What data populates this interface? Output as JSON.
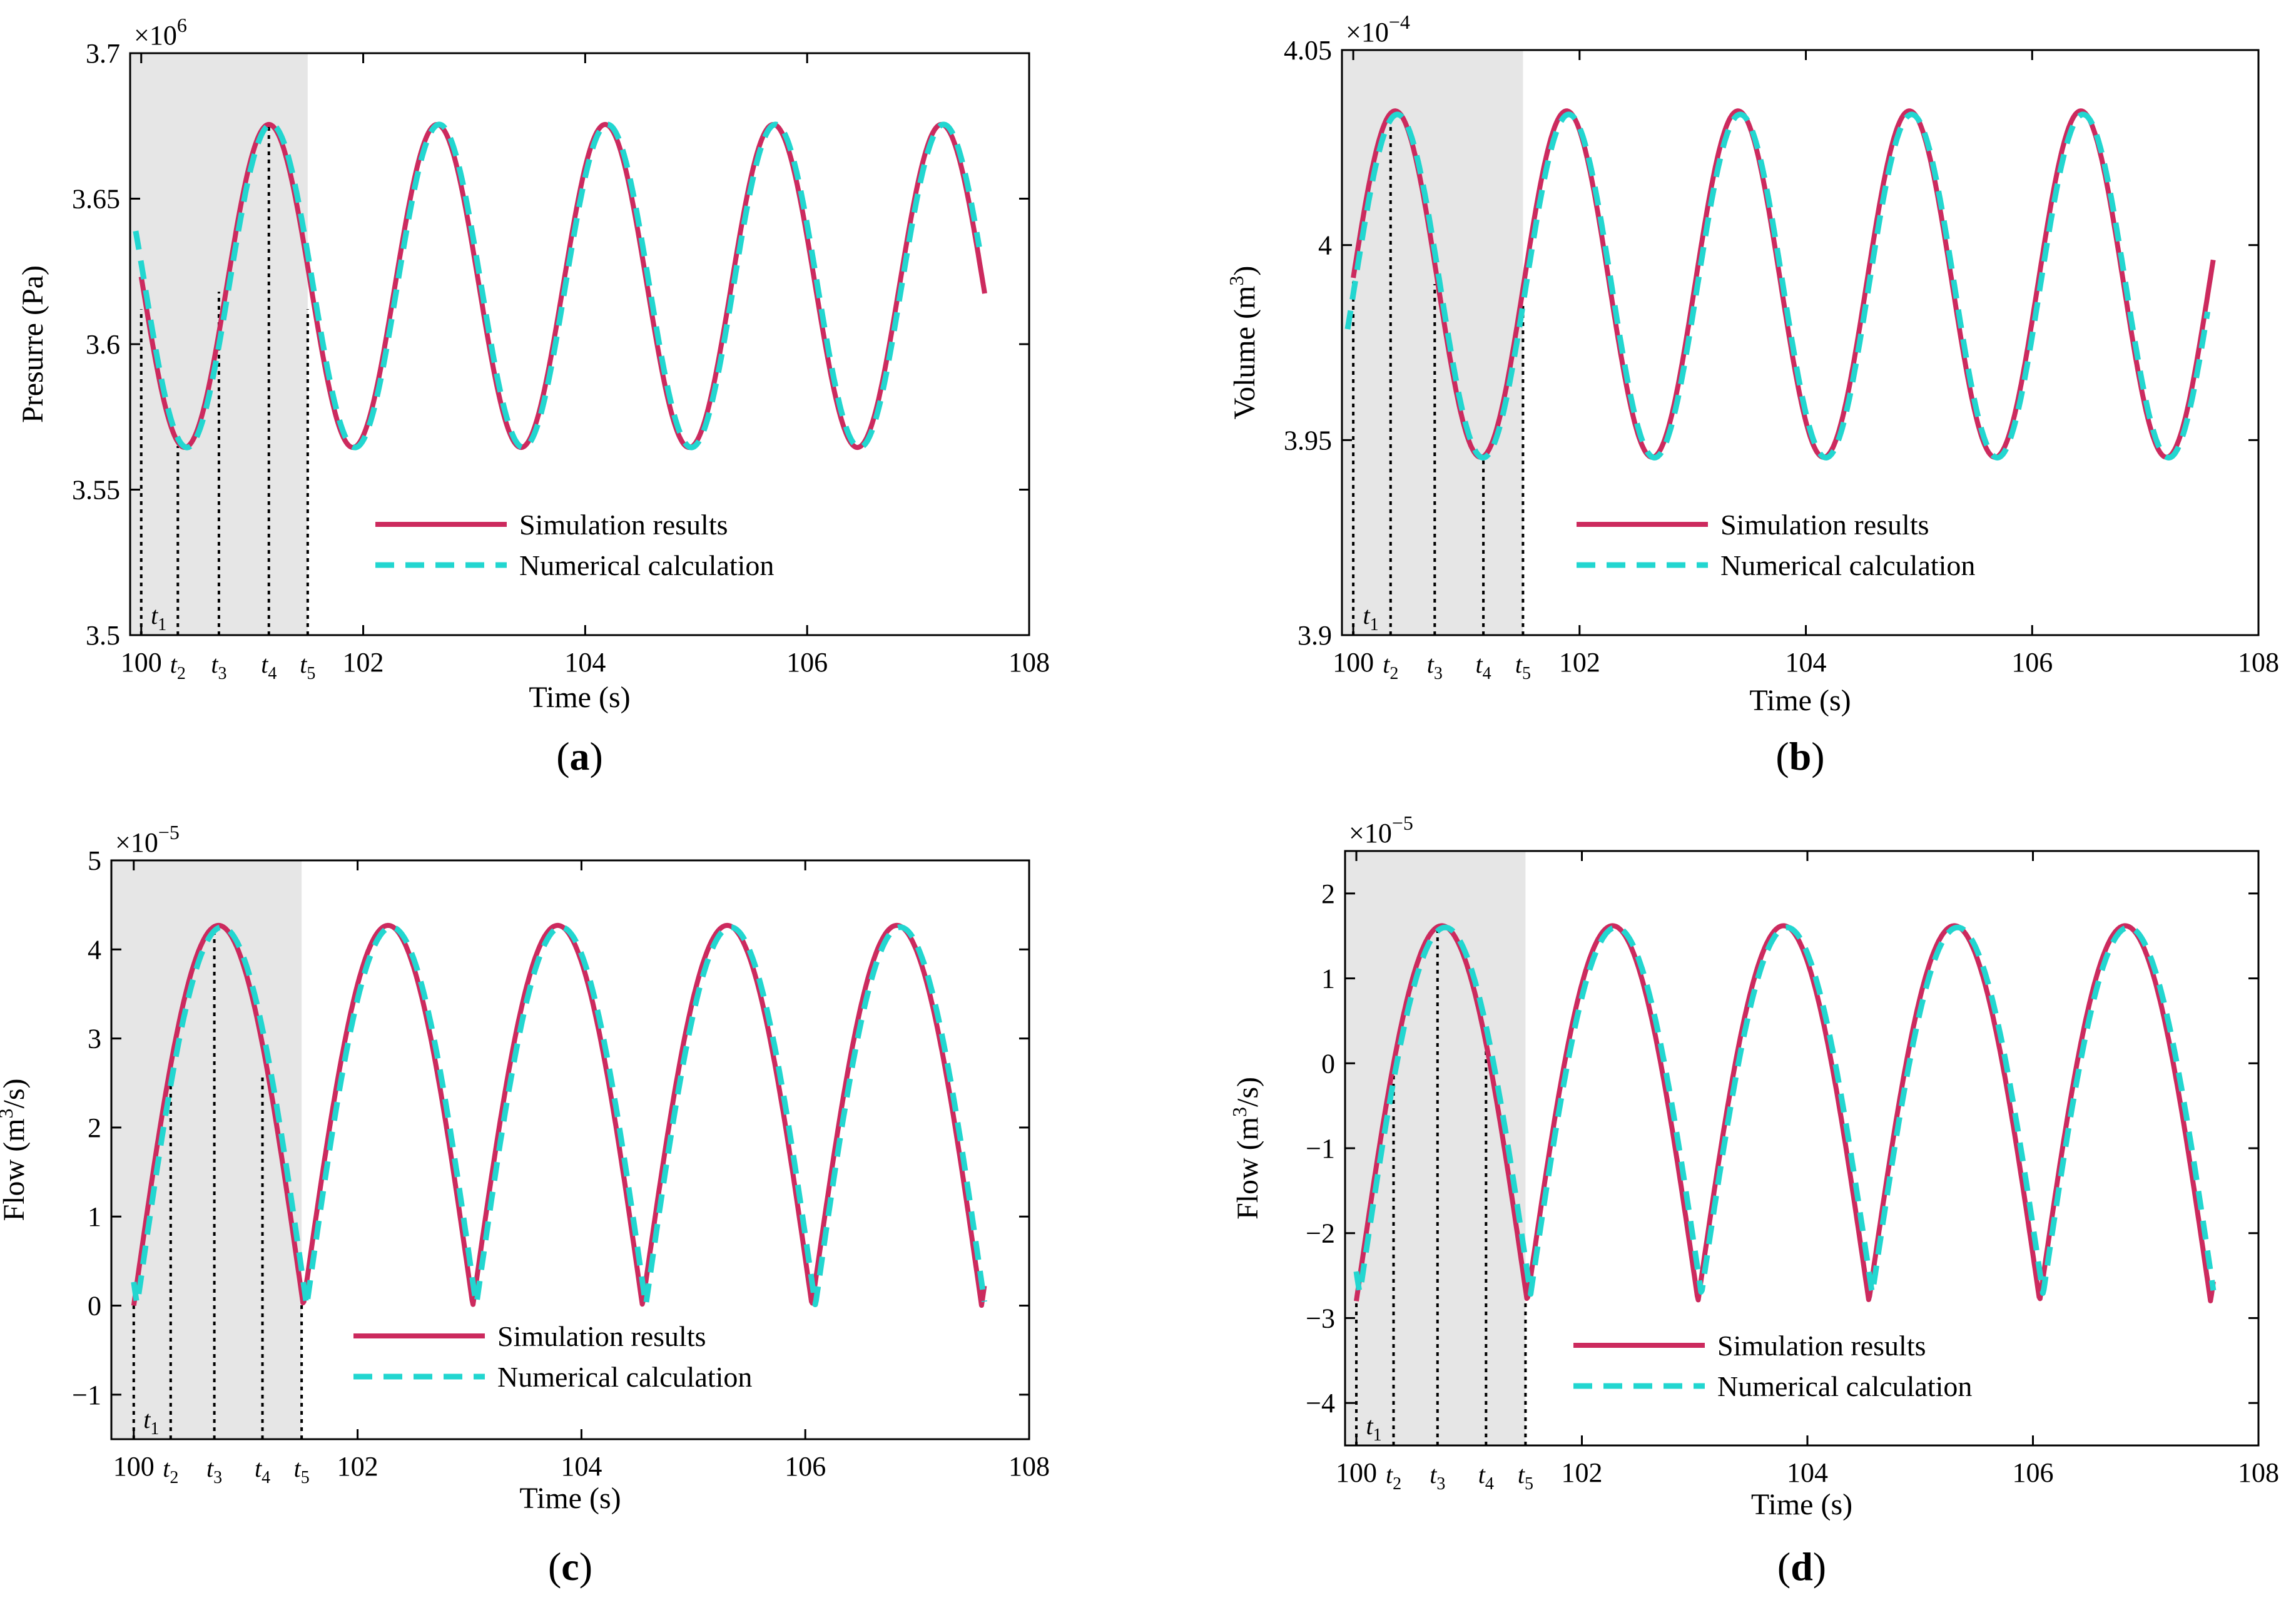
{
  "figure": {
    "colors": {
      "simulation": "#cc2a5e",
      "numerical": "#22d6d0",
      "shade": "#e6e6e6",
      "marker": "#000000"
    },
    "legend": {
      "simulation": "Simulation results",
      "numerical": "Numerical calculation"
    },
    "xlabel": "Time (s)"
  },
  "chart_data": [
    {
      "id": "a",
      "type": "line",
      "caption": "(a)",
      "caption_letter": "a",
      "ylabel": "Presurre (Pa)",
      "ylabel_sup": "",
      "ylabel_tail": "",
      "multiplier_base": "×10",
      "multiplier_exp": "6",
      "xlim": [
        99.9,
        108
      ],
      "ylim": [
        3.5,
        3.7
      ],
      "xticks": [
        100,
        102,
        104,
        106,
        108
      ],
      "yticks": [
        3.5,
        3.55,
        3.6,
        3.65,
        3.7
      ],
      "yticklabels": [
        "3.5",
        "3.55",
        "3.6",
        "3.65",
        "3.7"
      ],
      "shade": [
        99.9,
        101.5
      ],
      "markers": [
        {
          "label": "t",
          "sub": "1",
          "x": 100.0,
          "y": 3.612
        },
        {
          "label": "t",
          "sub": "2",
          "x": 100.33,
          "y": 3.565
        },
        {
          "label": "t",
          "sub": "3",
          "x": 100.7,
          "y": 3.618
        },
        {
          "label": "t",
          "sub": "4",
          "x": 101.15,
          "y": 3.675
        },
        {
          "label": "t",
          "sub": "5",
          "x": 101.5,
          "y": 3.612
        }
      ],
      "series": [
        {
          "name": "Simulation results",
          "style": "solid",
          "mean": 3.62,
          "amp": 0.0555,
          "period": 1.515,
          "peak": 101.15,
          "start": 100.0,
          "end": 107.6
        },
        {
          "name": "Numerical calculation",
          "style": "dashed",
          "mean": 3.62,
          "amp": 0.0555,
          "period": 1.515,
          "peak": 101.17,
          "start": 99.95,
          "end": 107.55
        }
      ]
    },
    {
      "id": "b",
      "type": "line",
      "caption": "(b)",
      "caption_letter": "b",
      "ylabel": "Volume (m",
      "ylabel_sup": "3",
      "ylabel_tail": ")",
      "multiplier_base": "×10",
      "multiplier_exp": "−4",
      "xlim": [
        99.9,
        108
      ],
      "ylim": [
        3.9,
        4.05
      ],
      "xticks": [
        100,
        102,
        104,
        106,
        108
      ],
      "yticks": [
        3.9,
        3.95,
        4.0,
        4.05
      ],
      "yticklabels": [
        "3.9",
        "3.95",
        "4",
        "4.05"
      ],
      "shade": [
        99.9,
        101.5
      ],
      "markers": [
        {
          "label": "t",
          "sub": "1",
          "x": 100.0,
          "y": 3.993
        },
        {
          "label": "t",
          "sub": "2",
          "x": 100.33,
          "y": 4.034
        },
        {
          "label": "t",
          "sub": "3",
          "x": 100.72,
          "y": 3.99
        },
        {
          "label": "t",
          "sub": "4",
          "x": 101.15,
          "y": 3.946
        },
        {
          "label": "t",
          "sub": "5",
          "x": 101.5,
          "y": 3.985
        }
      ],
      "series": [
        {
          "name": "Simulation results",
          "style": "solid",
          "mean": 3.99,
          "amp": 0.0444,
          "period": 1.515,
          "peak": 100.37,
          "start": 100.0,
          "end": 107.6
        },
        {
          "name": "Numerical calculation",
          "style": "dashed",
          "mean": 3.9895,
          "amp": 0.044,
          "period": 1.515,
          "peak": 100.39,
          "start": 99.95,
          "end": 107.55
        }
      ]
    },
    {
      "id": "c",
      "type": "line",
      "caption": "(c)",
      "caption_letter": "c",
      "ylabel": "Flow (m",
      "ylabel_sup": "3",
      "ylabel_tail": "/s)",
      "multiplier_base": "×10",
      "multiplier_exp": "−5",
      "xlim": [
        99.8,
        108
      ],
      "ylim": [
        -1.5,
        5
      ],
      "xticks": [
        100,
        102,
        104,
        106,
        108
      ],
      "yticks": [
        -1,
        0,
        1,
        2,
        3,
        4,
        5
      ],
      "yticklabels": [
        "−1",
        "0",
        "1",
        "2",
        "3",
        "4",
        "5"
      ],
      "shade": [
        99.8,
        101.5
      ],
      "markers": [
        {
          "label": "t",
          "sub": "1",
          "x": 100.0,
          "y": 0.0
        },
        {
          "label": "t",
          "sub": "2",
          "x": 100.33,
          "y": 2.6
        },
        {
          "label": "t",
          "sub": "3",
          "x": 100.72,
          "y": 4.25
        },
        {
          "label": "t",
          "sub": "4",
          "x": 101.15,
          "y": 2.6
        },
        {
          "label": "t",
          "sub": "5",
          "x": 101.5,
          "y": 0.1
        }
      ],
      "series": [
        {
          "name": "Simulation results",
          "style": "solid",
          "amp": 4.27,
          "offset": 0.0,
          "period": 1.515,
          "phase0": 100.0,
          "start": 100.0,
          "end": 107.6
        },
        {
          "name": "Numerical calculation",
          "style": "dashed",
          "amp": 4.25,
          "offset": 0.0,
          "period": 1.515,
          "phase0": 100.03,
          "start": 100.0,
          "end": 107.6
        }
      ]
    },
    {
      "id": "d",
      "type": "line",
      "caption": "(d)",
      "caption_letter": "d",
      "ylabel": "Flow (m",
      "ylabel_sup": "3",
      "ylabel_tail": "/s)",
      "multiplier_base": "×10",
      "multiplier_exp": "−5",
      "xlim": [
        99.9,
        108
      ],
      "ylim": [
        -4.5,
        2.5
      ],
      "xticks": [
        100,
        102,
        104,
        106,
        108
      ],
      "yticks": [
        -4,
        -3,
        -2,
        -1,
        0,
        1,
        2
      ],
      "yticklabels": [
        "−4",
        "−3",
        "−2",
        "−1",
        "0",
        "1",
        "2"
      ],
      "shade": [
        99.9,
        101.5
      ],
      "markers": [
        {
          "label": "t",
          "sub": "1",
          "x": 100.0,
          "y": -2.8
        },
        {
          "label": "t",
          "sub": "2",
          "x": 100.33,
          "y": 0.0
        },
        {
          "label": "t",
          "sub": "3",
          "x": 100.72,
          "y": 1.6
        },
        {
          "label": "t",
          "sub": "4",
          "x": 101.15,
          "y": 0.15
        },
        {
          "label": "t",
          "sub": "5",
          "x": 101.5,
          "y": -2.8
        }
      ],
      "series": [
        {
          "name": "Simulation results",
          "style": "solid",
          "amp": 4.42,
          "offset": -2.8,
          "period": 1.515,
          "phase0": 100.0,
          "start": 100.0,
          "end": 107.6
        },
        {
          "name": "Numerical calculation",
          "style": "dashed",
          "amp": 4.32,
          "offset": -2.72,
          "period": 1.515,
          "phase0": 100.03,
          "start": 100.0,
          "end": 107.6
        }
      ]
    }
  ]
}
